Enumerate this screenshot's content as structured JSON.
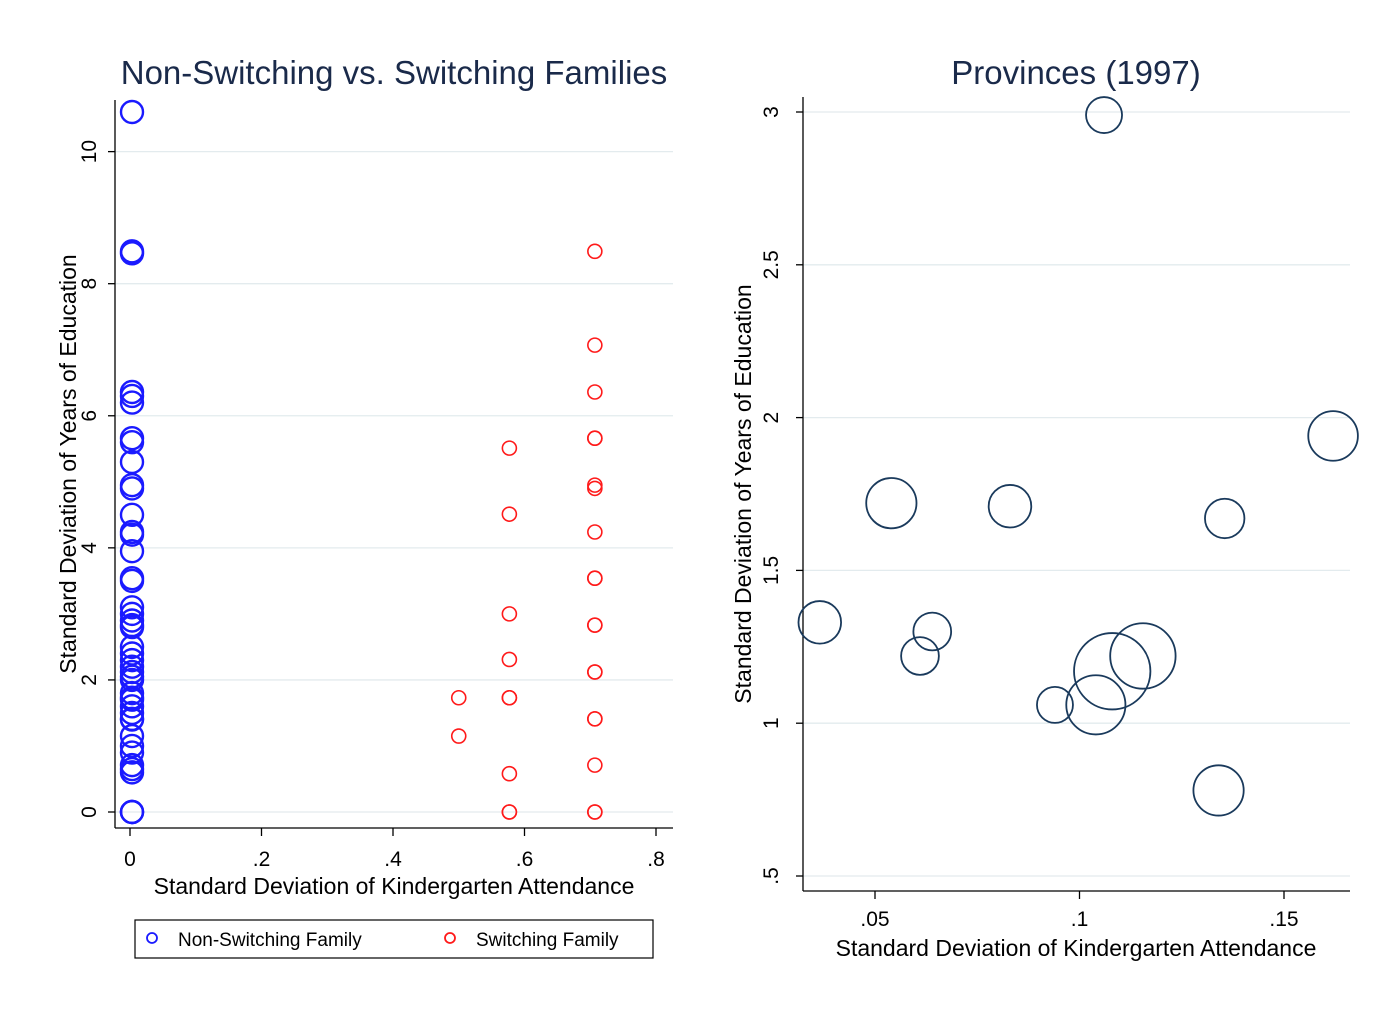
{
  "chart_data": [
    {
      "type": "scatter",
      "title": "Non-Switching vs. Switching Families",
      "xlabel": "Standard Deviation of Kindergarten Attendance",
      "ylabel": "Standard Deviation of Years of Education",
      "xlim": [
        0,
        0.8
      ],
      "ylim": [
        0,
        10.6
      ],
      "x_ticks": [
        0,
        0.2,
        0.4,
        0.6,
        0.8
      ],
      "x_tick_labels": [
        "0",
        ".2",
        ".4",
        ".6",
        ".8"
      ],
      "y_ticks": [
        0,
        2,
        4,
        6,
        8,
        10
      ],
      "y_tick_labels": [
        "0",
        "2",
        "4",
        "6",
        "8",
        "10"
      ],
      "grid": true,
      "legend": {
        "placement": "bottom",
        "items": [
          "Non-Switching Family",
          "Switching Family"
        ]
      },
      "series": [
        {
          "name": "Non-Switching Family",
          "color": "#1a1aff",
          "marker": "hollow-circle",
          "points": [
            [
              0,
              10.6
            ],
            [
              0,
              8.49
            ],
            [
              0,
              8.46
            ],
            [
              0,
              6.36
            ],
            [
              0,
              6.3
            ],
            [
              0,
              6.2
            ],
            [
              0,
              5.66
            ],
            [
              0,
              5.6
            ],
            [
              0,
              5.3
            ],
            [
              0,
              4.95
            ],
            [
              0,
              4.9
            ],
            [
              0,
              4.5
            ],
            [
              0,
              4.24
            ],
            [
              0,
              4.2
            ],
            [
              0,
              3.95
            ],
            [
              0,
              3.54
            ],
            [
              0,
              3.5
            ],
            [
              0,
              3.1
            ],
            [
              0,
              3.0
            ],
            [
              0,
              2.9
            ],
            [
              0,
              2.83
            ],
            [
              0,
              2.8
            ],
            [
              0,
              2.5
            ],
            [
              0,
              2.4
            ],
            [
              0,
              2.3
            ],
            [
              0,
              2.2
            ],
            [
              0,
              2.12
            ],
            [
              0,
              2.05
            ],
            [
              0,
              2.0
            ],
            [
              0,
              1.8
            ],
            [
              0,
              1.73
            ],
            [
              0,
              1.7
            ],
            [
              0,
              1.6
            ],
            [
              0,
              1.5
            ],
            [
              0,
              1.41
            ],
            [
              0,
              1.4
            ],
            [
              0,
              1.15
            ],
            [
              0,
              1.0
            ],
            [
              0,
              0.9
            ],
            [
              0,
              0.71
            ],
            [
              0,
              0.65
            ],
            [
              0,
              0.6
            ],
            [
              0,
              0.0
            ],
            [
              0,
              0.0
            ],
            [
              0,
              0.0
            ]
          ]
        },
        {
          "name": "Switching Family",
          "color": "#ff1a1a",
          "marker": "hollow-circle",
          "points": [
            [
              0.707,
              8.49
            ],
            [
              0.707,
              7.07
            ],
            [
              0.707,
              6.36
            ],
            [
              0.707,
              5.66
            ],
            [
              0.707,
              5.66
            ],
            [
              0.707,
              4.95
            ],
            [
              0.707,
              4.9
            ],
            [
              0.707,
              4.24
            ],
            [
              0.707,
              3.54
            ],
            [
              0.707,
              3.54
            ],
            [
              0.707,
              2.83
            ],
            [
              0.707,
              2.83
            ],
            [
              0.707,
              2.12
            ],
            [
              0.707,
              2.12
            ],
            [
              0.707,
              1.41
            ],
            [
              0.707,
              1.41
            ],
            [
              0.707,
              0.71
            ],
            [
              0.707,
              0.0
            ],
            [
              0.707,
              0.0
            ],
            [
              0.577,
              5.51
            ],
            [
              0.577,
              4.51
            ],
            [
              0.577,
              3.0
            ],
            [
              0.577,
              2.31
            ],
            [
              0.577,
              1.73
            ],
            [
              0.577,
              1.73
            ],
            [
              0.577,
              0.58
            ],
            [
              0.577,
              0.0
            ],
            [
              0.577,
              0.0
            ],
            [
              0.5,
              1.73
            ],
            [
              0.5,
              1.15
            ]
          ]
        }
      ]
    },
    {
      "type": "scatter",
      "title": "Provinces (1997)",
      "xlabel": "Standard Deviation of Kindergarten Attendance",
      "ylabel": "Standard Deviation of Years of Education",
      "xlim": [
        0.033,
        0.167
      ],
      "ylim": [
        0.45,
        3.05
      ],
      "x_ticks": [
        0.05,
        0.1,
        0.15
      ],
      "x_tick_labels": [
        ".05",
        ".1",
        ".15"
      ],
      "y_ticks": [
        0.5,
        1,
        1.5,
        2,
        2.5,
        3
      ],
      "y_tick_labels": [
        ".5",
        "1",
        "1.5",
        "2",
        "2.5",
        "3"
      ],
      "grid": true,
      "marker": "hollow-circle-weighted",
      "color": "#1a3a5c",
      "points": [
        {
          "x": 0.106,
          "y": 2.99,
          "weight": 1.0
        },
        {
          "x": 0.162,
          "y": 1.94,
          "weight": 1.9
        },
        {
          "x": 0.054,
          "y": 1.72,
          "weight": 1.95
        },
        {
          "x": 0.083,
          "y": 1.71,
          "weight": 1.4
        },
        {
          "x": 0.1355,
          "y": 1.67,
          "weight": 1.2
        },
        {
          "x": 0.0365,
          "y": 1.33,
          "weight": 1.4
        },
        {
          "x": 0.064,
          "y": 1.3,
          "weight": 1.1
        },
        {
          "x": 0.061,
          "y": 1.22,
          "weight": 1.1
        },
        {
          "x": 0.1155,
          "y": 1.22,
          "weight": 3.3
        },
        {
          "x": 0.108,
          "y": 1.17,
          "weight": 4.5
        },
        {
          "x": 0.104,
          "y": 1.06,
          "weight": 2.7
        },
        {
          "x": 0.094,
          "y": 1.06,
          "weight": 1.0
        },
        {
          "x": 0.134,
          "y": 0.78,
          "weight": 1.95
        }
      ]
    }
  ]
}
